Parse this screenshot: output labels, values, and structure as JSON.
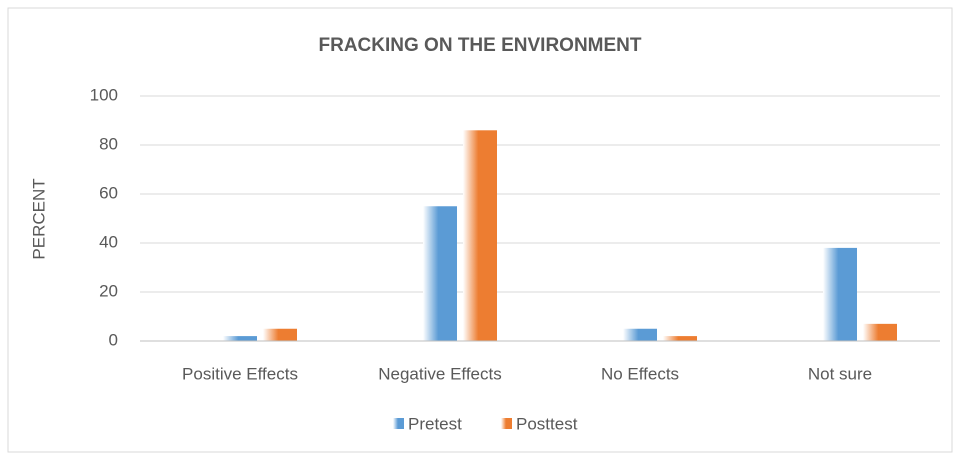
{
  "chart_data": {
    "type": "bar",
    "title": "FRACKING ON THE ENVIRONMENT",
    "y_label": "PERCENT",
    "categories": [
      "Positive Effects",
      "Negative Effects",
      "No Effects",
      "Not sure"
    ],
    "series": [
      {
        "name": "Pretest",
        "color": "#5b9bd5",
        "values": [
          2,
          55,
          5,
          38
        ]
      },
      {
        "name": "Posttest",
        "color": "#ed7d31",
        "values": [
          5,
          86,
          2,
          7
        ]
      }
    ],
    "ylim": [
      0,
      100
    ],
    "yticks": [
      0,
      20,
      40,
      60,
      80,
      100
    ],
    "grid": true,
    "legend": "bottom"
  }
}
